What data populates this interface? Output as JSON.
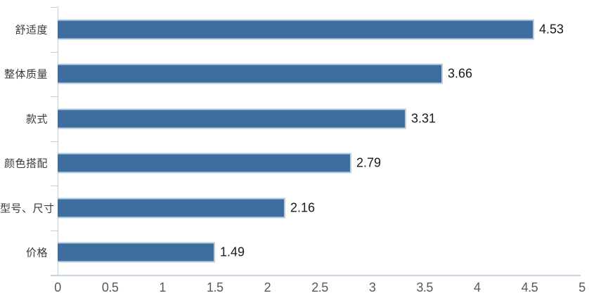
{
  "chart_data": {
    "type": "bar",
    "orientation": "horizontal",
    "title": "",
    "xlabel": "",
    "ylabel": "",
    "categories": [
      "舒适度",
      "整体质量",
      "款式",
      "颜色搭配",
      "型号、尺寸",
      "价格"
    ],
    "values": [
      4.53,
      3.66,
      3.31,
      2.79,
      2.16,
      1.49
    ],
    "value_labels": [
      "4.53",
      "3.66",
      "3.31",
      "2.79",
      "2.16",
      "1.49"
    ],
    "xlim": [
      0,
      5
    ],
    "x_tick_values": [
      0,
      0.5,
      1,
      1.5,
      2,
      2.5,
      3,
      3.5,
      4,
      4.5,
      5
    ],
    "x_tick_labels": [
      "0",
      "0.5",
      "1",
      "1.5",
      "2",
      "2.5",
      "3",
      "3.5",
      "4",
      "4.5",
      "5"
    ],
    "grid": false,
    "legend_position": "none",
    "colors": {
      "bar_fill": "#3e6e9e",
      "bar_border": "#b9cce0",
      "axis_line": "#bfcfe0",
      "tick_label": "#595959",
      "category_label": "#3a3a3a",
      "value_label": "#1a1a1a",
      "background": "#ffffff"
    }
  }
}
